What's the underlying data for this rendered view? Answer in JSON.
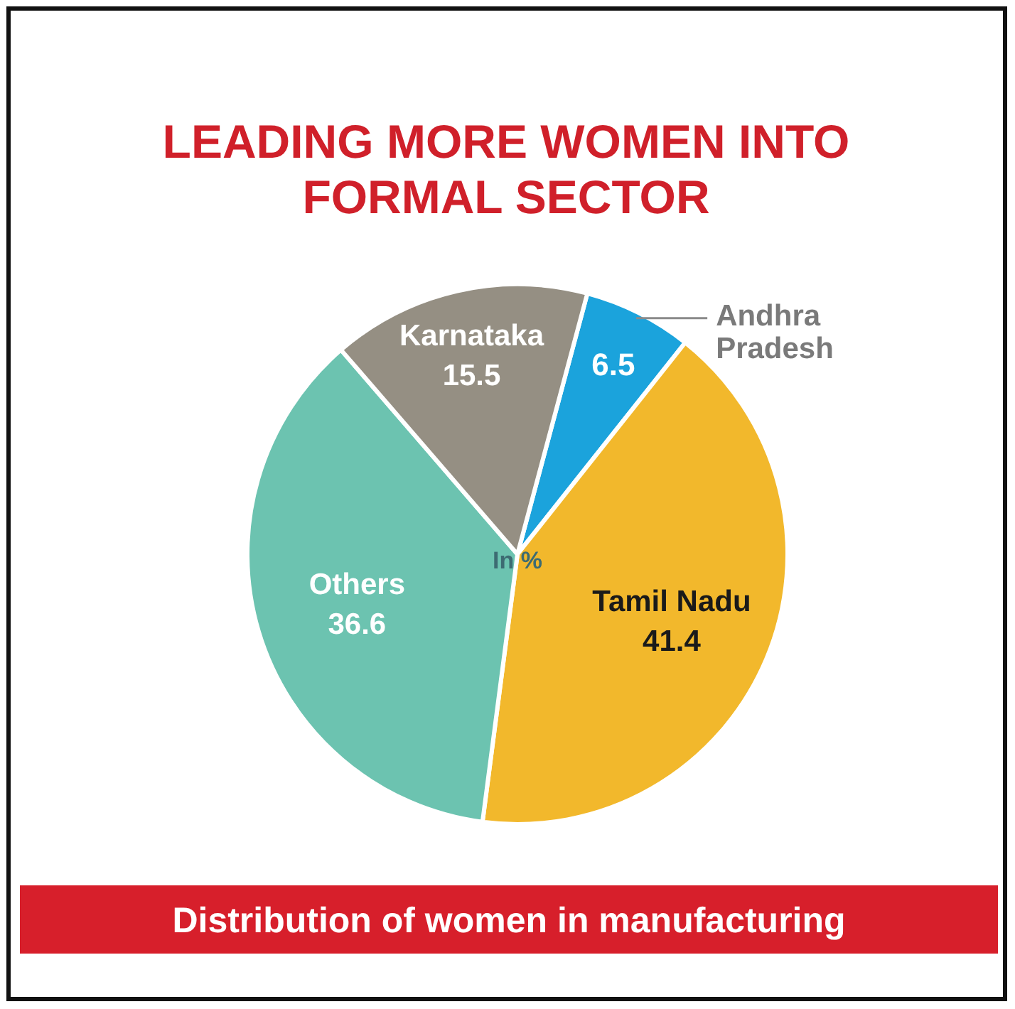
{
  "chart_data": {
    "type": "pie",
    "title": "LEADING MORE WOMEN INTO FORMAL SECTOR",
    "subtitle": "Distribution of women in manufacturing",
    "categories": [
      "Andhra Pradesh",
      "Tamil Nadu",
      "Others",
      "Karnataka"
    ],
    "values": [
      6.5,
      41.4,
      36.6,
      15.5
    ],
    "colors": [
      "#1ba3dc",
      "#f2b82c",
      "#6cc3b0",
      "#958f83"
    ],
    "data_labels": true,
    "annotations": [
      "In %"
    ]
  }
}
